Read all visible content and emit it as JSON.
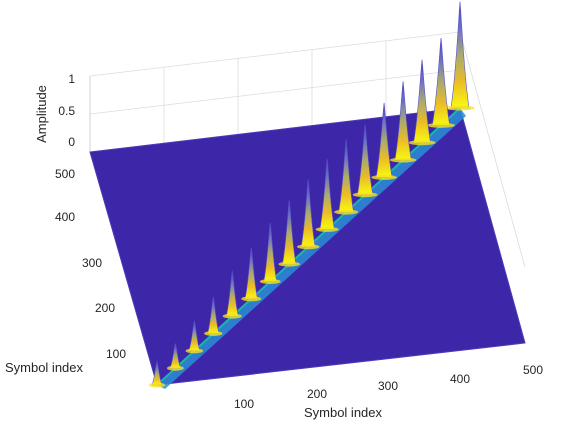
{
  "chart_data": {
    "type": "surface",
    "title": "",
    "xlabel": "Symbol index",
    "ylabel": "Symbol index",
    "zlabel": "Amplitude",
    "x_ticks": [
      "100",
      "200",
      "300",
      "400",
      "500"
    ],
    "y_ticks": [
      "100",
      "200",
      "300",
      "400",
      "500"
    ],
    "z_ticks": [
      "0",
      "0.5",
      "1"
    ],
    "xlim": [
      1,
      512
    ],
    "ylim": [
      1,
      512
    ],
    "zlim": [
      0,
      1
    ],
    "grid": true,
    "colormap": "parula",
    "floor_color": "#3e26a8",
    "diagonal_ridge": true,
    "peaks": [
      {
        "index": 1,
        "amplitude": 0.22
      },
      {
        "index": 32,
        "amplitude": 0.23
      },
      {
        "index": 64,
        "amplitude": 0.28
      },
      {
        "index": 96,
        "amplitude": 0.34
      },
      {
        "index": 128,
        "amplitude": 0.42
      },
      {
        "index": 160,
        "amplitude": 0.48
      },
      {
        "index": 192,
        "amplitude": 0.55
      },
      {
        "index": 224,
        "amplitude": 0.6
      },
      {
        "index": 256,
        "amplitude": 0.63
      },
      {
        "index": 288,
        "amplitude": 0.66
      },
      {
        "index": 320,
        "amplitude": 0.68
      },
      {
        "index": 352,
        "amplitude": 0.66
      },
      {
        "index": 384,
        "amplitude": 0.7
      },
      {
        "index": 416,
        "amplitude": 0.74
      },
      {
        "index": 448,
        "amplitude": 0.78
      },
      {
        "index": 480,
        "amplitude": 0.82
      },
      {
        "index": 512,
        "amplitude": 1.0
      }
    ]
  }
}
